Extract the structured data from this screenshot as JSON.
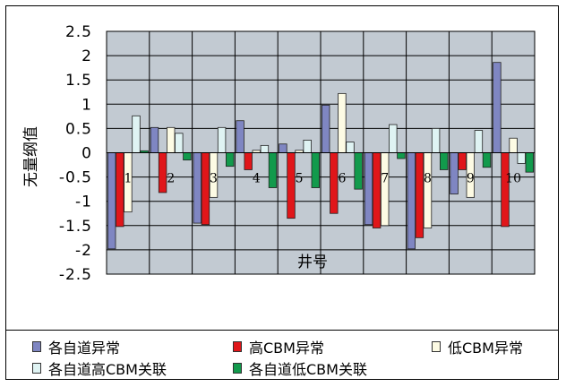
{
  "chart_data": {
    "type": "bar",
    "ylabel": "无量纲值",
    "xlabel": "井号",
    "ylim": [
      -2.5,
      2.5
    ],
    "yticks": [
      "-2.5",
      "-2",
      "-1.5",
      "-1",
      "-0.5",
      "0",
      "0.5",
      "1",
      "1.5",
      "2",
      "2.5"
    ],
    "categories": [
      "1",
      "2",
      "3",
      "4",
      "5",
      "6",
      "7",
      "8",
      "9",
      "10"
    ],
    "grid": true,
    "legend_position": "bottom",
    "series": [
      {
        "name": "各自道异常",
        "color": "#7f86c2",
        "values": [
          -1.98,
          0.52,
          -1.45,
          0.66,
          0.18,
          0.98,
          -1.48,
          -1.98,
          -0.85,
          1.86
        ]
      },
      {
        "name": "高CBM异常",
        "color": "#e0161a",
        "values": [
          -1.52,
          -0.82,
          -1.48,
          -0.35,
          -1.35,
          -1.25,
          -1.55,
          -1.75,
          -0.35,
          -1.52
        ]
      },
      {
        "name": "低CBM异常",
        "color": "#fdfbe4",
        "values": [
          -1.22,
          0.52,
          -0.92,
          0.05,
          0.05,
          1.22,
          -1.5,
          -1.55,
          -0.92,
          0.3
        ]
      },
      {
        "name": "各自道高CBM关联",
        "color": "#dff3f3",
        "values": [
          0.76,
          0.4,
          0.52,
          0.15,
          0.26,
          0.22,
          0.58,
          0.5,
          0.46,
          -0.22
        ]
      },
      {
        "name": "各自道低CBM关联",
        "color": "#129a4c",
        "values": [
          0.04,
          -0.15,
          -0.28,
          -0.72,
          -0.72,
          -0.75,
          -0.12,
          -0.35,
          -0.3,
          -0.4
        ]
      }
    ]
  }
}
